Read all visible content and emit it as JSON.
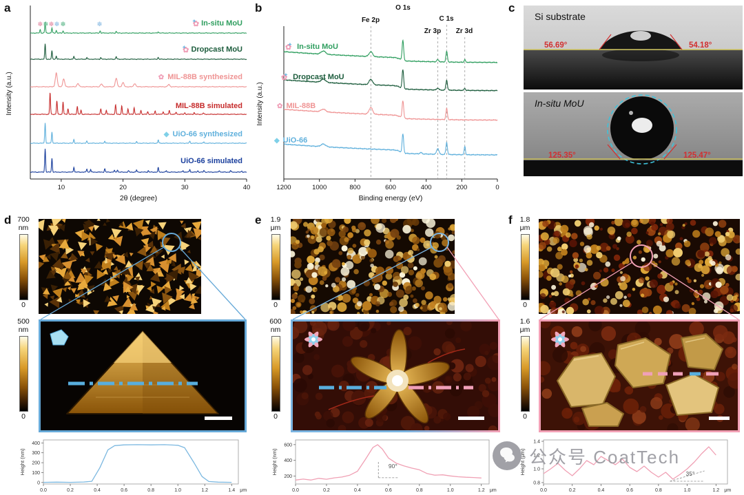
{
  "panels": {
    "a": {
      "label": "a"
    },
    "b": {
      "label": "b"
    },
    "c": {
      "label": "c",
      "top": {
        "title": "Si substrate",
        "angle_left": "56.69°",
        "angle_right": "54.18°"
      },
      "bottom": {
        "title": "In-situ MoU",
        "angle_left": "125.35°",
        "angle_right": "125.47°"
      }
    },
    "d": {
      "label": "d",
      "scale1": {
        "value": "700",
        "unit": "nm",
        "zero": "0"
      },
      "scale2": {
        "value": "500",
        "unit": "nm",
        "zero": "0"
      }
    },
    "e": {
      "label": "e",
      "scale1": {
        "value": "1.9",
        "unit": "μm",
        "zero": "0"
      },
      "scale2": {
        "value": "600",
        "unit": "nm",
        "zero": "0"
      }
    },
    "f": {
      "label": "f",
      "scale1": {
        "value": "1.8",
        "unit": "μm",
        "zero": "0"
      },
      "scale2": {
        "value": "1.6",
        "unit": "μm",
        "zero": "0"
      }
    }
  },
  "colors": {
    "insitu_green": "#2f9e5f",
    "dropcast_green": "#1c5c3c",
    "mil_pink": "#ef9494",
    "mil_red": "#c62b2b",
    "uio_light_blue": "#5fb0dc",
    "uio_dark_blue": "#1a3f9d",
    "angle_red": "#d23030",
    "baseline_yellow": "#d6ca62",
    "fit_circle_cyan": "#3ec2da",
    "inset_blue": "#66a9d8",
    "inset_pink": "#f2a0b5",
    "profile_blue": "#7bb8e0",
    "profile_pink": "#f0a0b4"
  },
  "watermark": {
    "icon": "wechat-icon",
    "text": "公众号  CoatTech"
  },
  "chart_data": [
    {
      "id": "xrd",
      "type": "line",
      "panel": "a",
      "title": "",
      "xlabel": "2θ (degree)",
      "ylabel": "Intensity (a.u.)",
      "xlim": [
        5,
        40
      ],
      "xticks": [
        10,
        20,
        30,
        40
      ],
      "vmax": 6.2,
      "peakw": 0.1,
      "noise": 0.015,
      "series": [
        {
          "name": "In-situ MoU",
          "color": "#2f9e5f",
          "baseline": 5.3,
          "peaks": [
            [
              6.6,
              0.12
            ],
            [
              7.4,
              0.4
            ],
            [
              8.5,
              0.18
            ],
            [
              9.2,
              0.1
            ],
            [
              10.3,
              0.08
            ],
            [
              16.3,
              0.08
            ],
            [
              18.9,
              0.06
            ],
            [
              25.7,
              0.05
            ]
          ]
        },
        {
          "name": "Dropcast MoU",
          "color": "#1c5c3c",
          "baseline": 4.35,
          "peaks": [
            [
              7.4,
              0.55
            ],
            [
              8.5,
              0.3
            ],
            [
              9.2,
              0.12
            ],
            [
              12.05,
              0.1
            ],
            [
              14.15,
              0.06
            ],
            [
              16.4,
              0.06
            ],
            [
              18.9,
              0.1
            ],
            [
              25.7,
              0.07
            ]
          ]
        },
        {
          "name": "MIL-88B synthesized",
          "color": "#ef9494",
          "baseline": 3.35,
          "wmult": 2.2,
          "peaks": [
            [
              9.2,
              0.5
            ],
            [
              10.4,
              0.28
            ],
            [
              12.7,
              0.12
            ],
            [
              16.5,
              0.1
            ],
            [
              18.9,
              0.3
            ],
            [
              20.0,
              0.15
            ],
            [
              21.9,
              0.12
            ],
            [
              27.4,
              0.08
            ]
          ]
        },
        {
          "name": "MIL-88B simulated",
          "color": "#c62b2b",
          "baseline": 2.35,
          "peaks": [
            [
              8.2,
              0.8
            ],
            [
              9.3,
              0.5
            ],
            [
              10.3,
              0.45
            ],
            [
              11.1,
              0.2
            ],
            [
              12.6,
              0.3
            ],
            [
              13.2,
              0.15
            ],
            [
              16.4,
              0.2
            ],
            [
              17.3,
              0.15
            ],
            [
              18.8,
              0.35
            ],
            [
              19.8,
              0.3
            ],
            [
              20.8,
              0.2
            ],
            [
              21.8,
              0.25
            ],
            [
              22.9,
              0.15
            ],
            [
              24.0,
              0.1
            ],
            [
              25.2,
              0.12
            ],
            [
              26.5,
              0.1
            ],
            [
              27.5,
              0.15
            ],
            [
              28.6,
              0.08
            ],
            [
              30.0,
              0.06
            ],
            [
              31.5,
              0.06
            ],
            [
              33.0,
              0.05
            ]
          ]
        },
        {
          "name": "UiO-66 synthesized",
          "color": "#5fb0dc",
          "baseline": 1.3,
          "peaks": [
            [
              7.4,
              0.75
            ],
            [
              8.5,
              0.42
            ],
            [
              12.05,
              0.14
            ],
            [
              14.15,
              0.08
            ],
            [
              17.05,
              0.08
            ],
            [
              22.2,
              0.05
            ],
            [
              25.7,
              0.12
            ],
            [
              30.8,
              0.07
            ],
            [
              33.1,
              0.04
            ]
          ]
        },
        {
          "name": "UiO-66 simulated",
          "color": "#1a3f9d",
          "baseline": 0.25,
          "peaks": [
            [
              7.4,
              0.85
            ],
            [
              8.5,
              0.5
            ],
            [
              12.05,
              0.18
            ],
            [
              14.15,
              0.12
            ],
            [
              14.75,
              0.1
            ],
            [
              17.05,
              0.12
            ],
            [
              18.6,
              0.06
            ],
            [
              19.1,
              0.08
            ],
            [
              20.9,
              0.05
            ],
            [
              22.2,
              0.08
            ],
            [
              24.1,
              0.05
            ],
            [
              25.7,
              0.16
            ],
            [
              27.0,
              0.05
            ],
            [
              29.7,
              0.06
            ],
            [
              30.8,
              0.1
            ],
            [
              32.1,
              0.05
            ],
            [
              33.1,
              0.06
            ],
            [
              35.6,
              0.06
            ],
            [
              37.4,
              0.05
            ],
            [
              39.2,
              0.04
            ]
          ]
        }
      ],
      "markers": [
        {
          "x": 6.6,
          "color": "#e8a0b4"
        },
        {
          "x": 7.5,
          "color": "#7cc5a0"
        },
        {
          "x": 8.4,
          "color": "#e8a0b4"
        },
        {
          "x": 9.3,
          "color": "#a0c8e8"
        },
        {
          "x": 10.3,
          "color": "#7cc5a0"
        },
        {
          "x": 16.2,
          "color": "#a0c8e8"
        }
      ]
    },
    {
      "id": "xps",
      "type": "line",
      "panel": "b",
      "title": "",
      "xlabel": "Binding energy (eV)",
      "ylabel": "Intensity (a.u.)",
      "xlim": [
        1200,
        0
      ],
      "xticks": [
        1200,
        1000,
        800,
        600,
        400,
        200,
        0
      ],
      "vmax": 5.6,
      "noise": 0.02,
      "bg": {
        "a": 0.28,
        "step": 0.12
      },
      "peak_labels": [
        {
          "text": "O 1s",
          "x": 531
        },
        {
          "text": "Fe 2p",
          "x": 711
        },
        {
          "text": "C 1s",
          "x": 285
        },
        {
          "text": "Zr 3p",
          "x": 335
        },
        {
          "text": "Zr 3d",
          "x": 183
        }
      ],
      "guides": [
        711,
        285,
        335,
        183
      ],
      "series": [
        {
          "name": "In-situ MoU",
          "color": "#2f9e5f",
          "baseline": 4.35,
          "peaks": [
            [
              531,
              0.75,
              6
            ],
            [
              285,
              0.4,
              6
            ],
            [
              978,
              0.12,
              18
            ],
            [
              711,
              0.18,
              14
            ],
            [
              335,
              0.08,
              8
            ],
            [
              183,
              0.1,
              5
            ]
          ]
        },
        {
          "name": "Dropcast MoU",
          "color": "#1c5c3c",
          "baseline": 3.3,
          "peaks": [
            [
              531,
              0.7,
              6
            ],
            [
              285,
              0.38,
              6
            ],
            [
              978,
              0.12,
              18
            ],
            [
              711,
              0.2,
              14
            ],
            [
              335,
              0.07,
              8
            ],
            [
              183,
              0.08,
              5
            ]
          ]
        },
        {
          "name": "MIL-88B",
          "color": "#ef9494",
          "baseline": 2.2,
          "peaks": [
            [
              531,
              0.65,
              6
            ],
            [
              285,
              0.42,
              6
            ],
            [
              978,
              0.1,
              18
            ],
            [
              711,
              0.25,
              14
            ]
          ]
        },
        {
          "name": "UiO-66",
          "color": "#5fb0dc",
          "baseline": 0.9,
          "peaks": [
            [
              531,
              0.7,
              6
            ],
            [
              285,
              0.45,
              6
            ],
            [
              978,
              0.1,
              18
            ],
            [
              430,
              0.05,
              8
            ],
            [
              335,
              0.22,
              9
            ],
            [
              183,
              0.32,
              5
            ]
          ]
        }
      ]
    },
    {
      "id": "profile-d",
      "type": "line",
      "panel": "d",
      "ylabel": "Height (nm)",
      "xunit": "μm",
      "color": "#7bb8e0",
      "xlim": [
        0,
        1.45
      ],
      "xticks": [
        0.0,
        0.2,
        0.4,
        0.6,
        0.8,
        1.0,
        1.2,
        1.4
      ],
      "ylim": [
        -15,
        430
      ],
      "yticks": [
        0,
        100,
        200,
        300,
        400
      ],
      "ydec": 0,
      "points": [
        [
          0,
          2
        ],
        [
          0.1,
          4
        ],
        [
          0.2,
          2
        ],
        [
          0.3,
          5
        ],
        [
          0.36,
          12
        ],
        [
          0.42,
          150
        ],
        [
          0.48,
          330
        ],
        [
          0.53,
          372
        ],
        [
          0.6,
          380
        ],
        [
          0.7,
          382
        ],
        [
          0.8,
          380
        ],
        [
          0.9,
          382
        ],
        [
          1.0,
          376
        ],
        [
          1.05,
          352
        ],
        [
          1.12,
          200
        ],
        [
          1.18,
          60
        ],
        [
          1.23,
          10
        ],
        [
          1.3,
          4
        ],
        [
          1.4,
          2
        ]
      ]
    },
    {
      "id": "profile-e",
      "type": "line",
      "panel": "e",
      "ylabel": "Height (nm)",
      "xunit": "μm",
      "color": "#f0a0b4",
      "xlim": [
        0,
        1.25
      ],
      "xticks": [
        0.0,
        0.2,
        0.4,
        0.6,
        0.8,
        1.0,
        1.2
      ],
      "ylim": [
        100,
        660
      ],
      "yticks": [
        200,
        400,
        600
      ],
      "ydec": 0,
      "points": [
        [
          0,
          150
        ],
        [
          0.05,
          162
        ],
        [
          0.1,
          150
        ],
        [
          0.15,
          172
        ],
        [
          0.2,
          160
        ],
        [
          0.25,
          178
        ],
        [
          0.3,
          188
        ],
        [
          0.35,
          212
        ],
        [
          0.4,
          262
        ],
        [
          0.45,
          410
        ],
        [
          0.5,
          565
        ],
        [
          0.53,
          600
        ],
        [
          0.56,
          545
        ],
        [
          0.6,
          430
        ],
        [
          0.65,
          365
        ],
        [
          0.7,
          330
        ],
        [
          0.75,
          302
        ],
        [
          0.8,
          280
        ],
        [
          0.85,
          232
        ],
        [
          0.9,
          212
        ],
        [
          0.95,
          216
        ],
        [
          1.0,
          202
        ],
        [
          1.05,
          192
        ],
        [
          1.1,
          186
        ],
        [
          1.15,
          182
        ],
        [
          1.2,
          176
        ]
      ],
      "annotation": {
        "text": "90°",
        "tx": 0.6,
        "ty": 300,
        "lines": [
          [
            0.535,
            180,
            0.535,
            380
          ],
          [
            0.535,
            180,
            0.66,
            180
          ]
        ]
      }
    },
    {
      "id": "profile-f",
      "type": "line",
      "panel": "f",
      "ylabel": "Height (μm)",
      "xunit": "μm",
      "color": "#f0a0b4",
      "xlim": [
        0,
        1.28
      ],
      "xticks": [
        0.0,
        0.2,
        0.4,
        0.6,
        0.8,
        1.0,
        1.2
      ],
      "ylim": [
        0.78,
        1.42
      ],
      "yticks": [
        0.8,
        1.0,
        1.2,
        1.4
      ],
      "ydec": 1,
      "points": [
        [
          0,
          0.93
        ],
        [
          0.05,
          1.0
        ],
        [
          0.1,
          1.08
        ],
        [
          0.15,
          0.98
        ],
        [
          0.2,
          0.9
        ],
        [
          0.25,
          1.0
        ],
        [
          0.3,
          1.12
        ],
        [
          0.35,
          1.06
        ],
        [
          0.4,
          1.18
        ],
        [
          0.45,
          1.12
        ],
        [
          0.5,
          1.06
        ],
        [
          0.55,
          1.14
        ],
        [
          0.6,
          1.02
        ],
        [
          0.65,
          0.96
        ],
        [
          0.7,
          1.04
        ],
        [
          0.75,
          0.95
        ],
        [
          0.8,
          0.88
        ],
        [
          0.85,
          0.95
        ],
        [
          0.9,
          0.85
        ],
        [
          0.95,
          0.92
        ],
        [
          1.0,
          1.0
        ],
        [
          1.05,
          1.1
        ],
        [
          1.1,
          1.22
        ],
        [
          1.15,
          1.32
        ],
        [
          1.2,
          1.2
        ]
      ],
      "annotation": {
        "text": "35°",
        "tx": 0.99,
        "ty": 0.9,
        "lines": [
          [
            0.88,
            0.82,
            1.12,
            0.82
          ],
          [
            0.88,
            0.82,
            1.12,
            0.97
          ]
        ]
      }
    }
  ]
}
